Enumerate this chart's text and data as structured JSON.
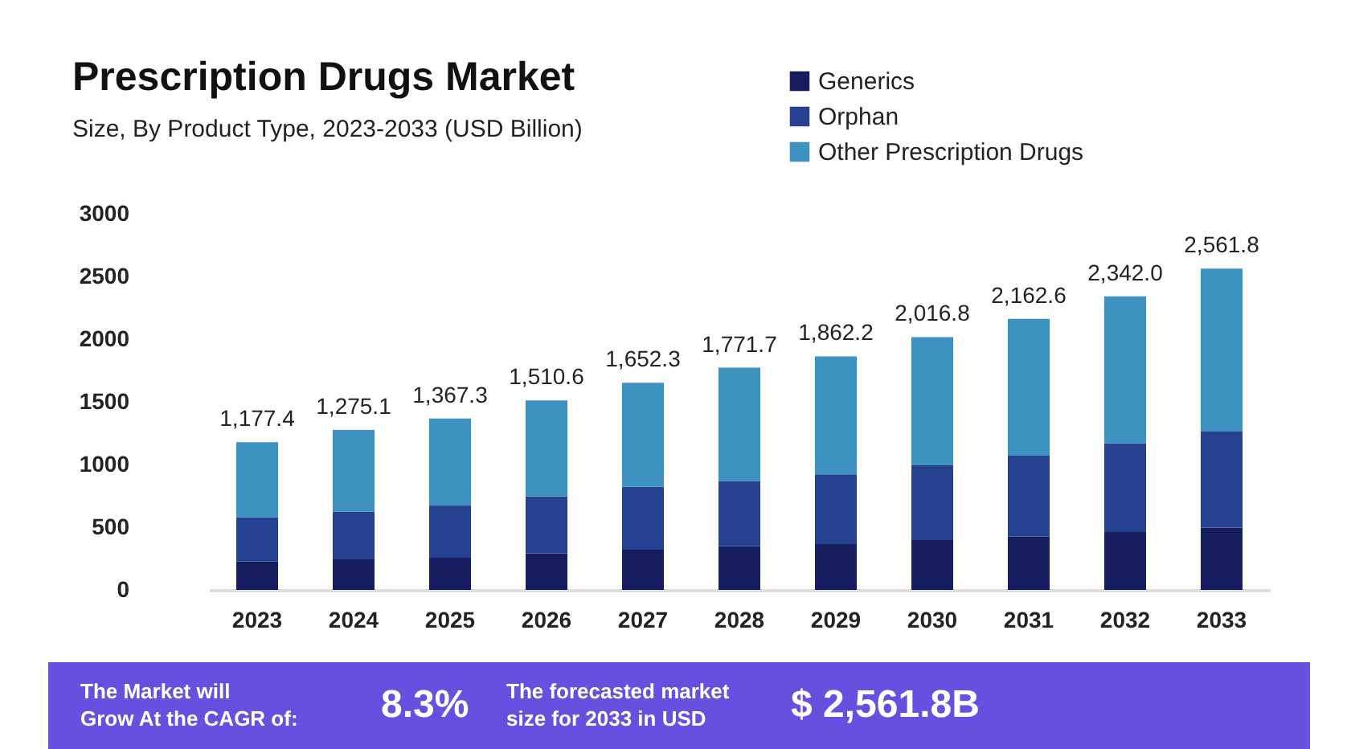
{
  "chart_data": {
    "type": "bar",
    "stacked": true,
    "title": "Prescription Drugs Market",
    "subtitle": "Size, By Product Type, 2023-2033 (USD Billion)",
    "categories": [
      "2023",
      "2024",
      "2025",
      "2026",
      "2027",
      "2028",
      "2029",
      "2030",
      "2031",
      "2032",
      "2033"
    ],
    "series": [
      {
        "name": "Generics",
        "color": "#161d5e",
        "values": [
          227,
          244,
          257,
          291,
          321,
          347,
          365,
          398,
          424,
          462,
          497
        ]
      },
      {
        "name": "Orphan",
        "color": "#26418f",
        "values": [
          351,
          381,
          420,
          454,
          501,
          522,
          556,
          596,
          647,
          706,
          766
        ]
      },
      {
        "name": "Other Prescription Drugs",
        "color": "#3d92c0",
        "values": [
          599.4,
          650.1,
          690.3,
          765.6,
          830.3,
          902.7,
          941.2,
          1022.8,
          1091.6,
          1174.0,
          1298.8
        ]
      }
    ],
    "totals": [
      "1,177.4",
      "1,275.1",
      "1,367.3",
      "1,510.6",
      "1,652.3",
      "1,771.7",
      "1,862.2",
      "2,016.8",
      "2,162.6",
      "2,342.0",
      "2,561.8"
    ],
    "ylim": [
      0,
      3000
    ],
    "yticks": [
      0,
      500,
      1000,
      1500,
      2000,
      2500,
      3000
    ],
    "grid": false,
    "legend": "top right",
    "annotations": [
      "The Market will Grow At the CAGR of:",
      "8.3%",
      "The forecasted market size for 2033 in USD",
      "$ 2,561.8B"
    ]
  }
}
